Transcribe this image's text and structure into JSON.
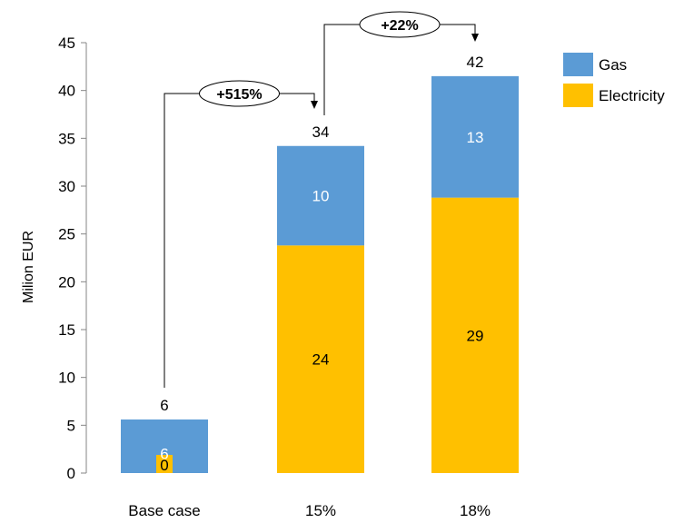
{
  "chart_data": {
    "type": "bar",
    "stacked": true,
    "categories": [
      "Base case",
      "15%",
      "18%"
    ],
    "series": [
      {
        "name": "Electricity",
        "values": [
          0.0,
          23.8,
          28.8
        ],
        "labels": [
          "0",
          "24",
          "29"
        ],
        "color": "#FFC000",
        "label_color": "#000000"
      },
      {
        "name": "Gas",
        "values": [
          5.6,
          10.4,
          12.7
        ],
        "labels": [
          "6",
          "10",
          "13"
        ],
        "color": "#5B9BD5",
        "label_color": "#FFFFFF"
      }
    ],
    "totals": [
      "6",
      "34",
      "42"
    ],
    "ylabel": "Milion EUR",
    "xlabel": "",
    "ylim": [
      0,
      45
    ],
    "yticks": [
      0,
      5,
      10,
      15,
      20,
      25,
      30,
      35,
      40,
      45
    ],
    "legend_position": "top-right",
    "legend_order": [
      "Gas",
      "Electricity"
    ],
    "annotations": [
      {
        "text": "+515%",
        "from": "Base case",
        "to": "15%"
      },
      {
        "text": "+22%",
        "from": "15%",
        "to": "18%"
      }
    ]
  }
}
